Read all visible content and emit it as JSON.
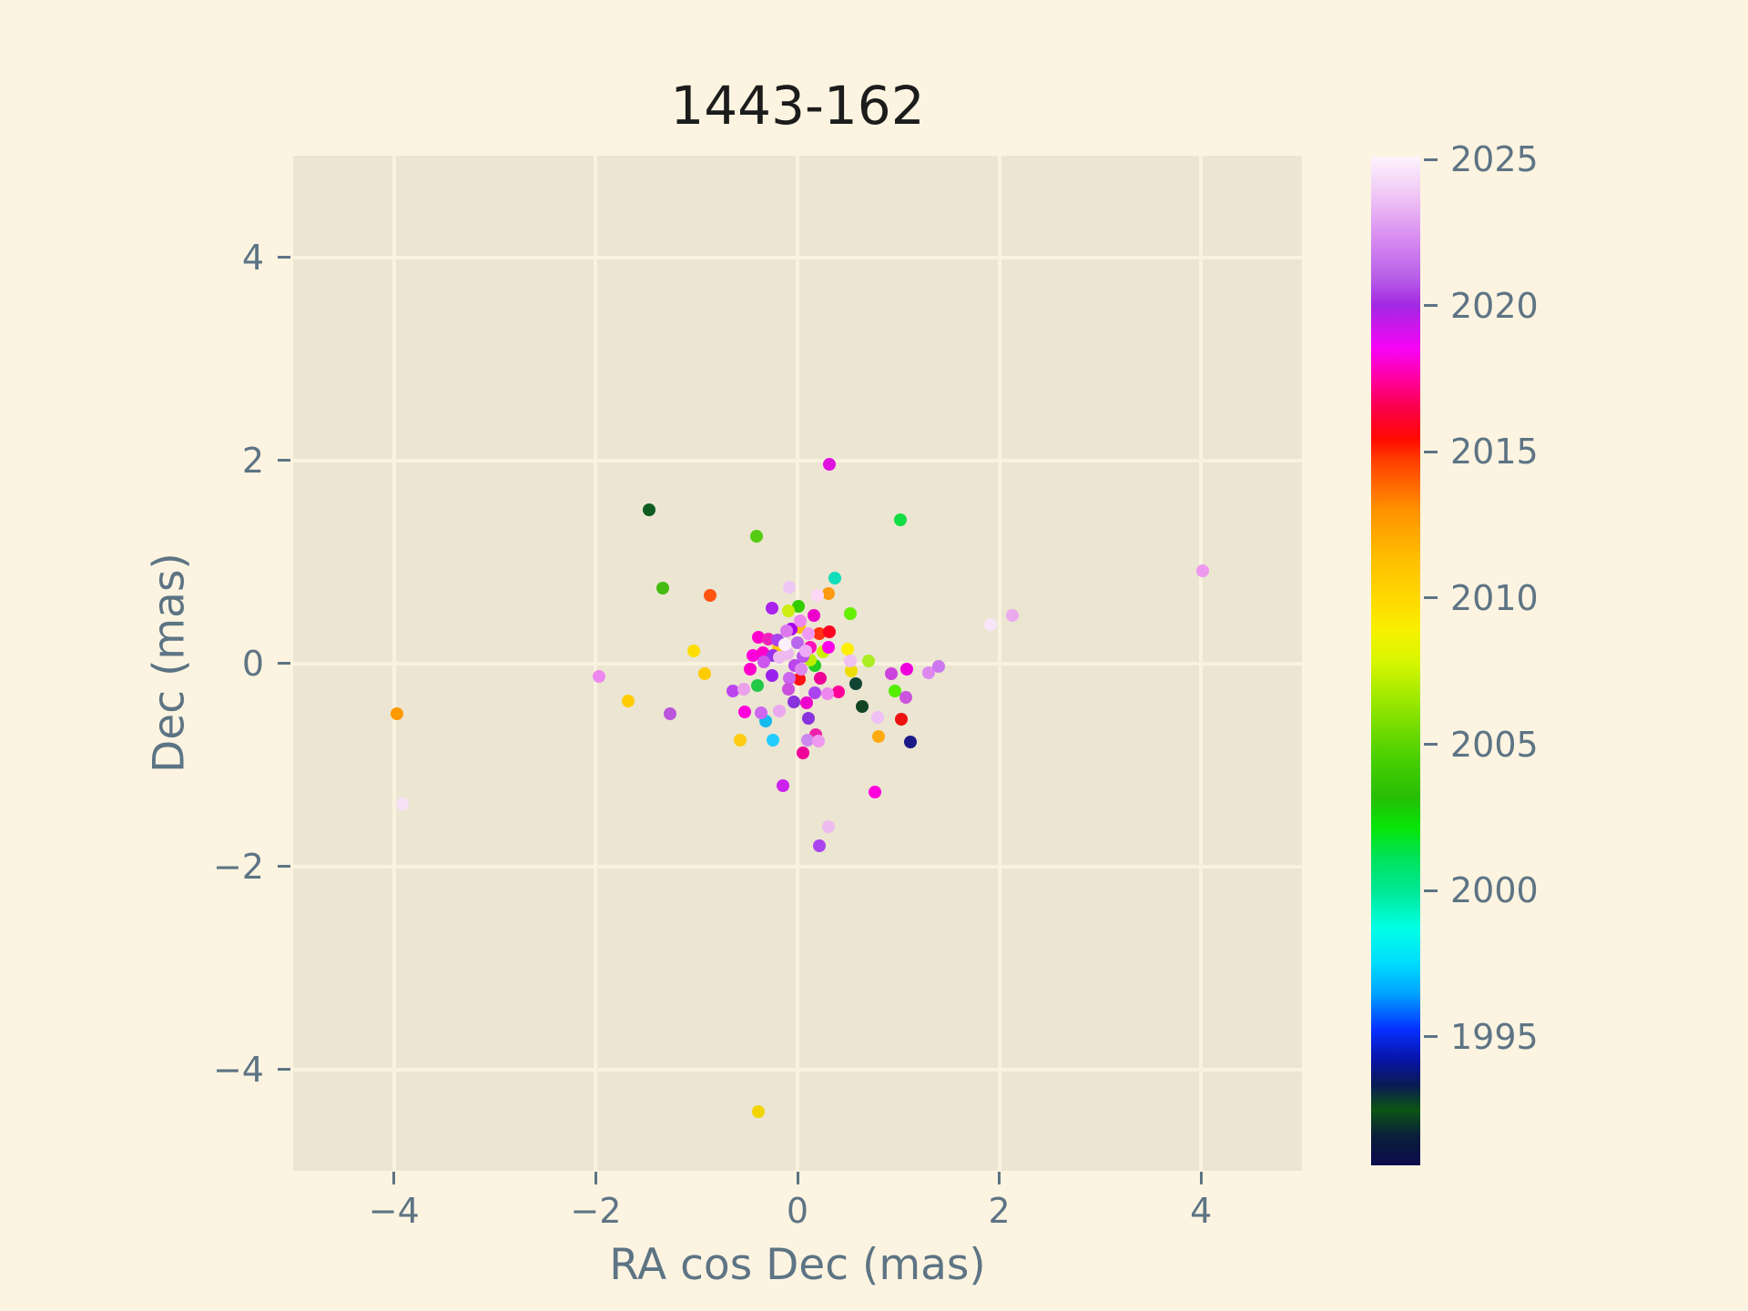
{
  "colors": {
    "page_bg": "#fcf4e1",
    "plot_bg": "#ebe5d2",
    "grid": "#f9f2df",
    "axis_text": "#5d7484",
    "title_text": "#1c1c1c"
  },
  "chart_data": {
    "type": "scatter",
    "title": "1443-162",
    "xlabel": "RA cos Dec (mas)",
    "ylabel": "Dec (mas)",
    "xlim": [
      -5,
      5
    ],
    "ylim": [
      -5,
      5
    ],
    "grid": true,
    "xticks": [
      -4,
      -2,
      0,
      2,
      4
    ],
    "yticks": [
      -4,
      -2,
      0,
      2,
      4
    ],
    "xtick_labels": [
      "−4",
      "−2",
      "0",
      "2",
      "4"
    ],
    "ytick_labels": [
      "−4",
      "−2",
      "0",
      "2",
      "4"
    ],
    "colorbar": {
      "quantity": "epoch year",
      "vmin": 1990.6,
      "vmax": 2025.1,
      "tick_years": [
        2025,
        2020,
        2015,
        2010,
        2005,
        2000,
        1995
      ],
      "tick_labels": [
        "2025",
        "2020",
        "2015",
        "2010",
        "2005",
        "2000",
        "1995"
      ],
      "colormap": "gist_ncar-like",
      "gradient_stops": [
        [
          0.0,
          "#0b0b4e"
        ],
        [
          0.03,
          "#0a2038"
        ],
        [
          0.055,
          "#0c5414"
        ],
        [
          0.08,
          "#0a1a55"
        ],
        [
          0.105,
          "#0714a8"
        ],
        [
          0.135,
          "#0531ff"
        ],
        [
          0.17,
          "#00a2ff"
        ],
        [
          0.2,
          "#00dcff"
        ],
        [
          0.235,
          "#00ffe4"
        ],
        [
          0.272,
          "#00e896"
        ],
        [
          0.305,
          "#00e25a"
        ],
        [
          0.335,
          "#07e507"
        ],
        [
          0.365,
          "#28bd05"
        ],
        [
          0.4,
          "#46cf02"
        ],
        [
          0.416,
          "#5ad400"
        ],
        [
          0.46,
          "#9ae800"
        ],
        [
          0.5,
          "#d8f600"
        ],
        [
          0.53,
          "#f6f000"
        ],
        [
          0.561,
          "#ffd900"
        ],
        [
          0.6,
          "#ffc000"
        ],
        [
          0.65,
          "#ff9100"
        ],
        [
          0.7,
          "#ff3c00"
        ],
        [
          0.72,
          "#ff0a00"
        ],
        [
          0.75,
          "#fa0048"
        ],
        [
          0.78,
          "#ff00a0"
        ],
        [
          0.81,
          "#f703f7"
        ],
        [
          0.852,
          "#a328e2"
        ],
        [
          0.88,
          "#b75fe8"
        ],
        [
          0.92,
          "#d88df0"
        ],
        [
          0.96,
          "#efc4f5"
        ],
        [
          1.0,
          "#fdf4fd"
        ]
      ]
    },
    "point_columns": [
      "ra_cos_dec_mas",
      "dec_mas",
      "color",
      "epoch_year_approx"
    ],
    "points": [
      [
        -3.97,
        -0.5,
        "#ff9900",
        2012
      ],
      [
        -3.92,
        -1.39,
        "#f6e0f6",
        2024
      ],
      [
        4.02,
        0.91,
        "#ee99ee",
        2022
      ],
      [
        -0.39,
        -4.42,
        "#f2d500",
        2010
      ],
      [
        0.32,
        1.96,
        "#e012e0",
        2019
      ],
      [
        -1.47,
        1.51,
        "#0e5c20",
        1991
      ],
      [
        -0.41,
        1.25,
        "#55cc11",
        2006
      ],
      [
        1.02,
        1.41,
        "#11dd44",
        2002
      ],
      [
        -1.34,
        0.74,
        "#44bb11",
        2005
      ],
      [
        -0.87,
        0.67,
        "#ff5511",
        2014
      ],
      [
        0.37,
        0.84,
        "#11ddbb",
        2000
      ],
      [
        2.13,
        0.47,
        "#eaaaee",
        2022
      ],
      [
        1.91,
        0.38,
        "#f8e6f8",
        2024
      ],
      [
        -1.97,
        -0.13,
        "#ee88ee",
        2022
      ],
      [
        -1.03,
        0.12,
        "#ffdd00",
        2010
      ],
      [
        -0.92,
        -0.1,
        "#ffcc00",
        2011
      ],
      [
        -1.68,
        -0.37,
        "#ffcc00",
        2011
      ],
      [
        -1.26,
        -0.5,
        "#bb55dd",
        2021
      ],
      [
        -0.14,
        -1.21,
        "#cc22ee",
        2021
      ],
      [
        0.77,
        -1.27,
        "#ff00dd",
        2018
      ],
      [
        0.31,
        -1.61,
        "#eebbee",
        2023
      ],
      [
        0.22,
        -1.8,
        "#aa44ee",
        2021
      ],
      [
        1.12,
        -0.78,
        "#1a1a88",
        1993
      ],
      [
        0.8,
        -0.72,
        "#ffaa11",
        2012
      ],
      [
        -0.57,
        -0.76,
        "#ffcc11",
        2011
      ],
      [
        -0.24,
        -0.76,
        "#22ccff",
        1997
      ],
      [
        0.1,
        -0.76,
        "#cc88ee",
        2022
      ],
      [
        0.21,
        -0.77,
        "#ee99ee",
        2022
      ],
      [
        0.18,
        -0.7,
        "#ee22aa",
        2018
      ],
      [
        0.05,
        -0.88,
        "#ee0099",
        2017
      ],
      [
        -0.32,
        -0.57,
        "#11bbee",
        1996
      ],
      [
        0.79,
        -0.53,
        "#efbff5",
        2023
      ],
      [
        1.03,
        -0.55,
        "#ee1111",
        2016
      ],
      [
        0.64,
        -0.43,
        "#114422",
        1991
      ],
      [
        0.58,
        -0.2,
        "#114433",
        1991
      ],
      [
        0.97,
        -0.27,
        "#55ee00",
        2004
      ],
      [
        1.07,
        -0.34,
        "#cc55dd",
        2021
      ],
      [
        0.93,
        -0.1,
        "#cc44dd",
        2021
      ],
      [
        1.08,
        -0.06,
        "#ee00dd",
        2019
      ],
      [
        1.3,
        -0.09,
        "#dd88ee",
        2022
      ],
      [
        1.4,
        -0.03,
        "#cc77ee",
        2022
      ],
      [
        0.7,
        0.02,
        "#aaee22",
        2008
      ],
      [
        0.52,
        0.02,
        "#f0c0f0",
        2023
      ],
      [
        0.53,
        -0.08,
        "#eedd00",
        2010
      ],
      [
        0.5,
        0.14,
        "#ffee00",
        2010
      ],
      [
        0.52,
        0.49,
        "#66ee00",
        2004
      ],
      [
        0.01,
        0.56,
        "#33cc00",
        2005
      ],
      [
        -0.09,
        0.52,
        "#ccee11",
        2008
      ],
      [
        0.16,
        0.47,
        "#ee00cc",
        2019
      ],
      [
        0.03,
        0.42,
        "#ee88ee",
        2022
      ],
      [
        -0.25,
        0.54,
        "#aa22ee",
        2020
      ],
      [
        -0.08,
        0.75,
        "#eec8f5",
        2023
      ],
      [
        0.2,
        0.67,
        "#ffd8f8",
        2024
      ],
      [
        0.31,
        0.69,
        "#ff9911",
        2012
      ],
      [
        0.02,
        0.35,
        "#ffbb00",
        2011
      ],
      [
        -0.06,
        0.34,
        "#aa00ee",
        2020
      ],
      [
        0.22,
        0.29,
        "#ff3311",
        2014
      ],
      [
        0.32,
        0.31,
        "#ff0022",
        2015
      ],
      [
        0.11,
        0.29,
        "#ee99f5",
        2023
      ],
      [
        -0.39,
        0.26,
        "#ff00cc",
        2018
      ],
      [
        -0.29,
        0.24,
        "#ee22bb",
        2018
      ],
      [
        -0.13,
        0.18,
        "#fdf0fd",
        2025
      ],
      [
        0.0,
        0.2,
        "#bb66ee",
        2021
      ],
      [
        0.08,
        0.12,
        "#eeaaf8",
        2023
      ],
      [
        0.13,
        0.16,
        "#ff11bb",
        2018
      ],
      [
        0.25,
        0.11,
        "#ccee00",
        2008
      ],
      [
        0.31,
        0.16,
        "#ff00ee",
        2019
      ],
      [
        0.13,
        0.03,
        "#bbee00",
        2008
      ],
      [
        0.17,
        -0.02,
        "#22cc22",
        2003
      ],
      [
        -0.1,
        0.09,
        "#eeb8f0",
        2023
      ],
      [
        -0.18,
        0.06,
        "#eebbf0",
        2023
      ],
      [
        -0.03,
        -0.02,
        "#bb44ee",
        2021
      ],
      [
        0.04,
        -0.06,
        "#dd88ee",
        2022
      ],
      [
        -0.44,
        0.08,
        "#ff00dd",
        2018
      ],
      [
        -0.33,
        0.01,
        "#cc55ee",
        2021
      ],
      [
        -0.47,
        -0.06,
        "#ff00cc",
        2018
      ],
      [
        -0.25,
        -0.12,
        "#9922ee",
        2020
      ],
      [
        -0.08,
        -0.15,
        "#cc66ee",
        2021
      ],
      [
        0.02,
        -0.16,
        "#ff1111",
        2016
      ],
      [
        -0.09,
        -0.26,
        "#cc50e0",
        2021
      ],
      [
        0.17,
        -0.29,
        "#aa44ee",
        2021
      ],
      [
        0.3,
        -0.3,
        "#ee88ee",
        2022
      ],
      [
        0.41,
        -0.28,
        "#ff0099",
        2017
      ],
      [
        -0.04,
        -0.38,
        "#8833dd",
        2020
      ],
      [
        0.09,
        -0.39,
        "#ee00cc",
        2019
      ],
      [
        -0.4,
        -0.22,
        "#22c846",
        2002
      ],
      [
        -0.64,
        -0.27,
        "#bb44ee",
        2021
      ],
      [
        -0.53,
        -0.26,
        "#eaa0ea",
        2022
      ],
      [
        -0.52,
        -0.48,
        "#ff00dd",
        2018
      ],
      [
        -0.36,
        -0.49,
        "#cc66ee",
        2021
      ],
      [
        -0.18,
        -0.47,
        "#eaa8f0",
        2023
      ],
      [
        0.11,
        -0.54,
        "#8833dd",
        2020
      ],
      [
        0.23,
        -0.15,
        "#ee0099",
        2017
      ],
      [
        0.05,
        0.07,
        "#bb55ee",
        2021
      ],
      [
        -0.2,
        0.23,
        "#aa44ee",
        2021
      ],
      [
        -0.11,
        0.32,
        "#dd77ee",
        2022
      ],
      [
        -0.19,
        0.15,
        "#ffcc00",
        2011
      ],
      [
        -0.34,
        0.1,
        "#ff00cc",
        2018
      ],
      [
        -0.24,
        0.08,
        "#9933ee",
        2020
      ]
    ]
  }
}
